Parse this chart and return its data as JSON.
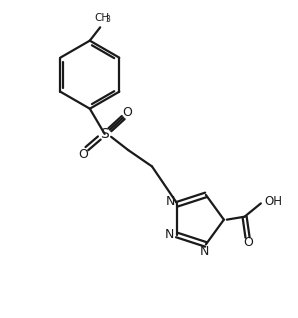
{
  "background_color": "#ffffff",
  "line_color": "#1a1a1a",
  "line_width": 1.6,
  "figsize": [
    2.98,
    3.18
  ],
  "dpi": 100,
  "xlim": [
    0,
    10
  ],
  "ylim": [
    0,
    10.7
  ]
}
